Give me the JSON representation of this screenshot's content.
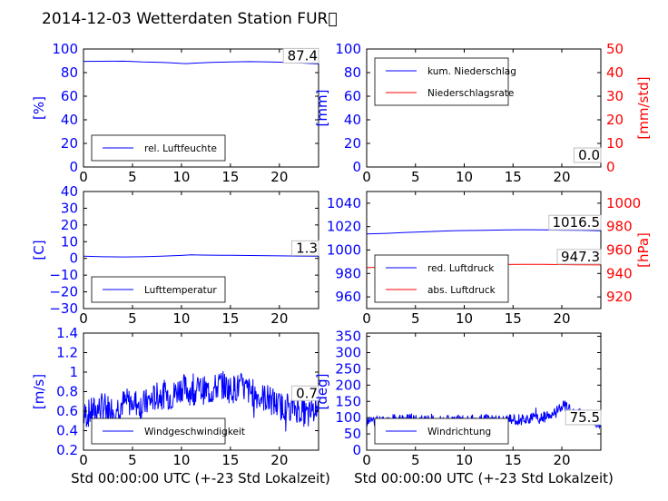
{
  "title": "2014-12-03 Wetterdaten Station FUR\u0000",
  "xlabel": "Std 00:00:00 UTC (+-23 Std Lokalzeit)",
  "colors": {
    "primary": "#0000ff",
    "secondary": "#ff0000",
    "axis": "#000000"
  },
  "chart_data": [
    {
      "type": "line",
      "id": "humidity",
      "ylabel": "[%]",
      "xlim": [
        0,
        24
      ],
      "ylim": [
        0,
        100
      ],
      "x_ticks": [
        0,
        5,
        10,
        15,
        20
      ],
      "y_ticks": [
        0,
        20,
        40,
        60,
        80,
        100
      ],
      "legend_position": "lower-left",
      "last_value_label": "87.4",
      "series": [
        {
          "name": "rel. Luftfeuchte",
          "color": "#0000ff",
          "x": [
            0,
            2,
            4,
            5,
            6,
            8,
            9,
            10,
            10.5,
            11,
            12,
            13,
            15,
            17,
            19,
            21,
            22.5,
            24
          ],
          "y": [
            89.5,
            89.6,
            89.7,
            89.4,
            89.0,
            88.6,
            88.3,
            87.8,
            87.6,
            87.9,
            88.3,
            88.7,
            89.1,
            89.3,
            89.0,
            88.6,
            88.0,
            87.4
          ]
        }
      ]
    },
    {
      "type": "line",
      "id": "precip",
      "ylabel": "[mm]",
      "y2label": "[mm/std]",
      "xlim": [
        0,
        24
      ],
      "ylim": [
        0,
        100
      ],
      "y2lim": [
        0,
        50
      ],
      "x_ticks": [
        0,
        5,
        10,
        15,
        20
      ],
      "y_ticks": [
        0,
        20,
        40,
        60,
        80,
        100
      ],
      "y2_ticks": [
        0,
        10,
        20,
        30,
        40,
        50
      ],
      "legend_position": "upper-left",
      "last_value_label": "0.0",
      "series": [
        {
          "name": "kum. Niederschlag",
          "color": "#0000ff",
          "axis": "left",
          "x": [
            0,
            24
          ],
          "y": [
            0,
            0
          ]
        },
        {
          "name": "Niederschlagsrate",
          "color": "#ff0000",
          "axis": "right",
          "x": [
            0,
            24
          ],
          "y": [
            0,
            0
          ]
        }
      ]
    },
    {
      "type": "line",
      "id": "temperature",
      "ylabel": "[C]",
      "xlim": [
        0,
        24
      ],
      "ylim": [
        -30,
        40
      ],
      "x_ticks": [
        0,
        5,
        10,
        15,
        20
      ],
      "y_ticks": [
        -30,
        -20,
        -10,
        0,
        10,
        20,
        30,
        40
      ],
      "legend_position": "lower-left",
      "last_value_label": "1.3",
      "series": [
        {
          "name": "Lufttemperatur",
          "color": "#0000ff",
          "x": [
            0,
            2,
            4,
            6,
            8,
            10,
            11,
            12,
            14,
            16,
            18,
            20,
            22,
            24
          ],
          "y": [
            1.3,
            1.0,
            0.9,
            1.0,
            1.3,
            1.8,
            2.1,
            2.0,
            1.9,
            1.8,
            1.7,
            1.5,
            1.4,
            1.3
          ]
        }
      ]
    },
    {
      "type": "line",
      "id": "pressure",
      "ylabel": "",
      "y2label": "[hPa]",
      "xlim": [
        0,
        24
      ],
      "ylim": [
        950,
        1050
      ],
      "y2lim": [
        910,
        1010
      ],
      "x_ticks": [
        0,
        5,
        10,
        15,
        20
      ],
      "y_ticks": [
        960,
        980,
        1000,
        1020,
        1040
      ],
      "y2_ticks": [
        920,
        940,
        960,
        980,
        1000
      ],
      "legend_position": "lower-left",
      "last_value_labels": [
        "1016.5",
        "947.3"
      ],
      "series": [
        {
          "name": "red. Luftdruck",
          "color": "#0000ff",
          "axis": "left",
          "x": [
            0,
            2,
            4,
            6,
            8,
            10,
            12,
            14,
            16,
            18,
            20,
            22,
            24
          ],
          "y": [
            1013.8,
            1014.3,
            1015.0,
            1015.6,
            1016.3,
            1016.7,
            1016.9,
            1017.1,
            1017.4,
            1017.3,
            1017.0,
            1016.8,
            1016.5
          ]
        },
        {
          "name": "abs. Luftdruck",
          "color": "#ff0000",
          "axis": "right",
          "x": [
            0,
            2,
            4,
            6,
            8,
            10,
            12,
            14,
            16,
            18,
            20,
            22,
            24
          ],
          "y": [
            945.0,
            945.5,
            946.0,
            946.5,
            947.0,
            947.3,
            947.5,
            947.7,
            947.8,
            947.8,
            947.6,
            947.4,
            947.3
          ]
        }
      ]
    },
    {
      "type": "line",
      "id": "windspeed",
      "ylabel": "[m/s]",
      "xlim": [
        0,
        24
      ],
      "ylim": [
        0.2,
        1.4
      ],
      "x_ticks": [
        0,
        5,
        10,
        15,
        20
      ],
      "y_ticks": [
        0.2,
        0.4,
        0.6,
        0.8,
        1.0,
        1.2,
        1.4
      ],
      "legend_position": "lower-left",
      "last_value_label": "0.7",
      "noise": {
        "seed": 7,
        "points": 480,
        "amplitude": 0.15
      },
      "series": [
        {
          "name": "Windgeschwindigkeit",
          "color": "#0000ff",
          "x": [
            0,
            1,
            2,
            3,
            4,
            5,
            6,
            7,
            8,
            9,
            10,
            11,
            12,
            13,
            14,
            15,
            16,
            17,
            18,
            19,
            20,
            21,
            22,
            23,
            24
          ],
          "y": [
            0.55,
            0.6,
            0.65,
            0.62,
            0.68,
            0.7,
            0.66,
            0.72,
            0.78,
            0.75,
            0.85,
            0.8,
            0.82,
            0.8,
            0.88,
            0.82,
            0.85,
            0.8,
            0.75,
            0.72,
            0.65,
            0.66,
            0.62,
            0.55,
            0.7
          ]
        }
      ]
    },
    {
      "type": "line",
      "id": "winddir",
      "ylabel": "[deg]",
      "xlim": [
        0,
        24
      ],
      "ylim": [
        0,
        360
      ],
      "x_ticks": [
        0,
        5,
        10,
        15,
        20
      ],
      "y_ticks": [
        0,
        50,
        100,
        150,
        200,
        250,
        300,
        350
      ],
      "legend_position": "lower-left",
      "last_value_label": "75.5",
      "noise": {
        "seed": 11,
        "points": 480,
        "amplitude": 18
      },
      "series": [
        {
          "name": "Windrichtung",
          "color": "#0000ff",
          "x": [
            0,
            2,
            4,
            6,
            8,
            10,
            12,
            14,
            16,
            18,
            19,
            20,
            21,
            22,
            23,
            24
          ],
          "y": [
            88,
            92,
            95,
            90,
            92,
            90,
            95,
            92,
            95,
            100,
            105,
            140,
            125,
            110,
            100,
            75.5
          ]
        }
      ]
    }
  ]
}
